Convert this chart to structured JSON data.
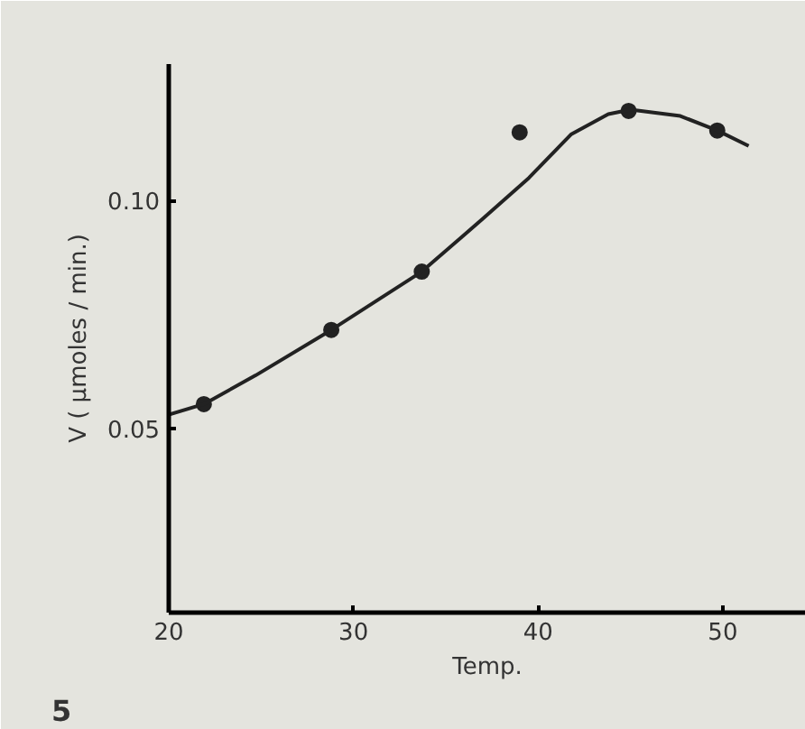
{
  "chart_data": {
    "type": "scatter",
    "xlabel": "Temp.",
    "ylabel": "V ( μmoles / min.)",
    "series": [
      {
        "color": "#222222",
        "marker": "circle",
        "x": [
          21.9,
          28.8,
          33.7,
          39.0,
          44.9,
          49.7
        ],
        "values": [
          0.0553,
          0.0716,
          0.0844,
          0.115,
          0.1197,
          0.1154
        ]
      },
      {
        "type": "line",
        "color": "#222222",
        "line_style": "solid",
        "x": [
          20,
          21.9,
          24.7,
          28.8,
          33.7,
          37,
          39.5,
          41.8,
          43.8,
          45,
          47.7,
          49.7,
          51.4
        ],
        "values": [
          0.053,
          0.0553,
          0.0616,
          0.0716,
          0.0844,
          0.096,
          0.105,
          0.1146,
          0.119,
          0.12,
          0.1186,
          0.1154,
          0.112
        ]
      }
    ],
    "xlim": [
      20,
      54.5
    ],
    "ylim": [
      0.0095,
      0.13
    ],
    "xticks": [
      20,
      30,
      40,
      50
    ],
    "yticks": [
      {
        "value": 0.05,
        "label": "0.05"
      },
      {
        "value": 0.1,
        "label": "0.10"
      }
    ],
    "grid": false,
    "annotations": [
      "5"
    ]
  }
}
